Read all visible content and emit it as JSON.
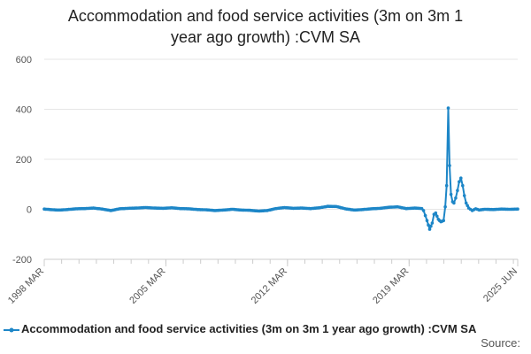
{
  "title_lines": [
    "Accommodation and food service activities (3m on 3m 1",
    "year ago growth) :CVM SA"
  ],
  "source_label": "Source:",
  "colors": {
    "series": "#1d86c7",
    "grid": "#e6e6e6",
    "axis": "#cccccc",
    "text": "#555555"
  },
  "chart_data": {
    "type": "line",
    "title": "Accommodation and food service activities (3m on 3m 1 year ago growth) :CVM SA",
    "xlabel": "",
    "ylabel": "",
    "x_range": [
      1998.17,
      2025.42
    ],
    "ylim": [
      -200,
      600
    ],
    "y_ticks": [
      -200,
      0,
      200,
      400,
      600
    ],
    "x_tick_labels": [
      {
        "label": "1998 MAR",
        "x": 1998.17
      },
      {
        "label": "2005 MAR",
        "x": 2005.17
      },
      {
        "label": "2012 MAR",
        "x": 2012.17
      },
      {
        "label": "2019 MAR",
        "x": 2019.17
      },
      {
        "label": "2025 JUN",
        "x": 2025.42
      }
    ],
    "grid": true,
    "legend_position": "bottom",
    "series": [
      {
        "name": "Accommodation and food service activities (3m on 3m 1 year ago growth) :CVM SA",
        "points": [
          [
            1998.17,
            1
          ],
          [
            1998.5,
            -1
          ],
          [
            1999.0,
            -3
          ],
          [
            1999.5,
            -1
          ],
          [
            2000.0,
            2
          ],
          [
            2000.5,
            3
          ],
          [
            2001.0,
            5
          ],
          [
            2001.5,
            1
          ],
          [
            2002.0,
            -5
          ],
          [
            2002.5,
            2
          ],
          [
            2003.0,
            4
          ],
          [
            2003.5,
            5
          ],
          [
            2004.0,
            7
          ],
          [
            2004.5,
            5
          ],
          [
            2005.0,
            4
          ],
          [
            2005.5,
            6
          ],
          [
            2006.0,
            3
          ],
          [
            2006.5,
            2
          ],
          [
            2007.0,
            -1
          ],
          [
            2007.5,
            -2
          ],
          [
            2008.0,
            -5
          ],
          [
            2008.5,
            -3
          ],
          [
            2009.0,
            0
          ],
          [
            2009.5,
            -3
          ],
          [
            2010.0,
            -4
          ],
          [
            2010.5,
            -7
          ],
          [
            2011.0,
            -5
          ],
          [
            2011.5,
            3
          ],
          [
            2012.0,
            7
          ],
          [
            2012.5,
            4
          ],
          [
            2013.0,
            5
          ],
          [
            2013.5,
            3
          ],
          [
            2014.0,
            6
          ],
          [
            2014.5,
            12
          ],
          [
            2015.0,
            11
          ],
          [
            2015.5,
            2
          ],
          [
            2016.0,
            -3
          ],
          [
            2016.5,
            -1
          ],
          [
            2017.0,
            2
          ],
          [
            2017.5,
            4
          ],
          [
            2018.0,
            8
          ],
          [
            2018.5,
            10
          ],
          [
            2019.0,
            3
          ],
          [
            2019.5,
            5
          ],
          [
            2019.9,
            3
          ],
          [
            2020.0,
            -5
          ],
          [
            2020.2,
            -45
          ],
          [
            2020.35,
            -80
          ],
          [
            2020.5,
            -55
          ],
          [
            2020.6,
            -20
          ],
          [
            2020.7,
            -15
          ],
          [
            2020.85,
            -40
          ],
          [
            2021.0,
            -50
          ],
          [
            2021.15,
            -45
          ],
          [
            2021.25,
            10
          ],
          [
            2021.33,
            95
          ],
          [
            2021.42,
            405
          ],
          [
            2021.5,
            175
          ],
          [
            2021.58,
            60
          ],
          [
            2021.67,
            30
          ],
          [
            2021.75,
            25
          ],
          [
            2021.85,
            45
          ],
          [
            2021.95,
            75
          ],
          [
            2022.05,
            110
          ],
          [
            2022.15,
            125
          ],
          [
            2022.25,
            95
          ],
          [
            2022.35,
            55
          ],
          [
            2022.45,
            25
          ],
          [
            2022.6,
            5
          ],
          [
            2022.8,
            -5
          ],
          [
            2023.0,
            2
          ],
          [
            2023.2,
            -3
          ],
          [
            2023.5,
            0
          ],
          [
            2024.0,
            -1
          ],
          [
            2024.5,
            1
          ],
          [
            2025.0,
            0
          ],
          [
            2025.42,
            1
          ]
        ]
      }
    ]
  }
}
